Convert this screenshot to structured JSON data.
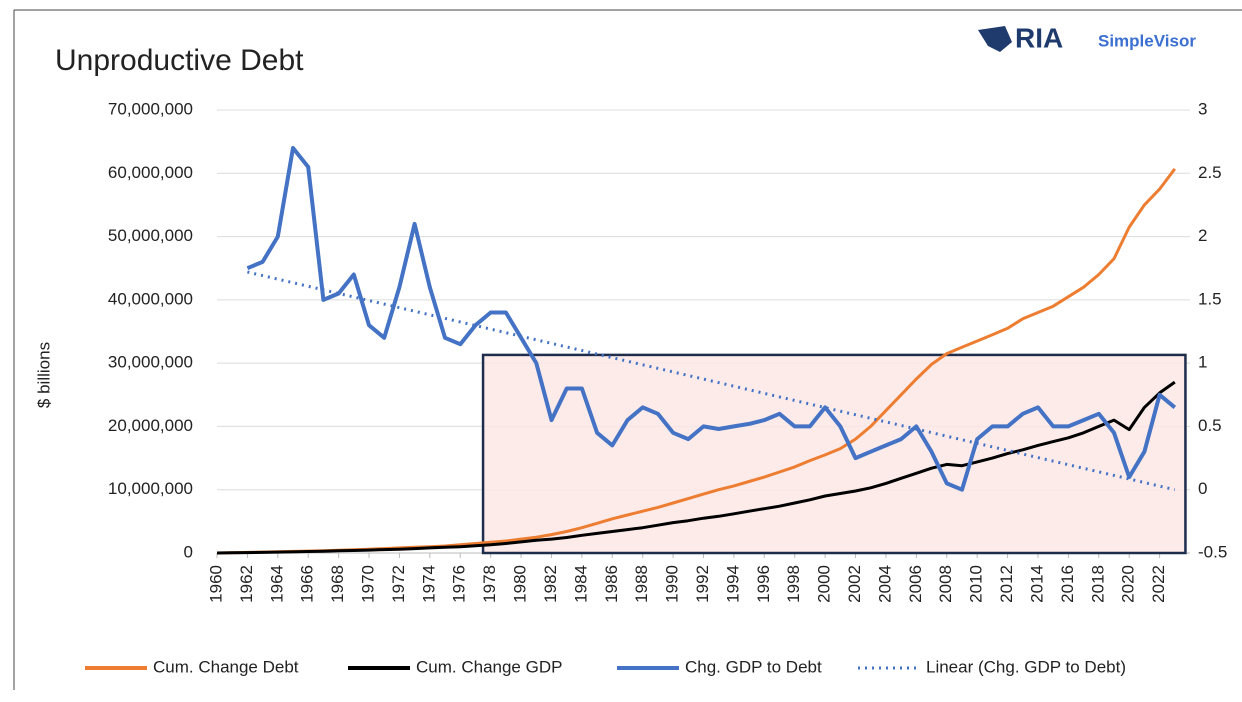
{
  "chart_data": {
    "type": "line",
    "title": "Unproductive Debt",
    "logo": {
      "name": "RIA",
      "sub": "SimpleVisor"
    },
    "y_label": "$ billions",
    "x": [
      1960,
      1961,
      1962,
      1963,
      1964,
      1965,
      1966,
      1967,
      1968,
      1969,
      1970,
      1971,
      1972,
      1973,
      1974,
      1975,
      1976,
      1977,
      1978,
      1979,
      1980,
      1981,
      1982,
      1983,
      1984,
      1985,
      1986,
      1987,
      1988,
      1989,
      1990,
      1991,
      1992,
      1993,
      1994,
      1995,
      1996,
      1997,
      1998,
      1999,
      2000,
      2001,
      2002,
      2003,
      2004,
      2005,
      2006,
      2007,
      2008,
      2009,
      2010,
      2011,
      2012,
      2013,
      2014,
      2015,
      2016,
      2017,
      2018,
      2019,
      2020,
      2021,
      2022,
      2023
    ],
    "xlim": [
      1960,
      2024
    ],
    "xticks": [
      1960,
      1962,
      1964,
      1966,
      1968,
      1970,
      1972,
      1974,
      1976,
      1978,
      1980,
      1982,
      1984,
      1986,
      1988,
      1990,
      1992,
      1994,
      1996,
      1998,
      2000,
      2002,
      2004,
      2006,
      2008,
      2010,
      2012,
      2014,
      2016,
      2018,
      2020,
      2022
    ],
    "ylim": [
      0,
      70000000
    ],
    "yticks": [
      0,
      {
        "value": 10000000,
        "label": "10,000,000"
      },
      {
        "value": 20000000,
        "label": "20,000,000"
      },
      {
        "value": 30000000,
        "label": "30,000,000"
      },
      {
        "value": 40000000,
        "label": "40,000,000"
      },
      {
        "value": 50000000,
        "label": "50,000,000"
      },
      {
        "value": 60000000,
        "label": "60,000,000"
      },
      {
        "value": 70000000,
        "label": "70,000,000"
      }
    ],
    "y2lim": [
      -0.5,
      3
    ],
    "y2ticks": [
      -0.5,
      0,
      0.5,
      1,
      1.5,
      2,
      2.5,
      3
    ],
    "grid": true,
    "legend": "bottom",
    "highlight": {
      "x": [
        1977.5,
        2023.7
      ],
      "y": [
        0,
        31300000
      ],
      "color": "#fde8e6",
      "border": "#1f2d4d"
    },
    "series": [
      {
        "name": "Cum. Change Debt",
        "color": "#ed7d31",
        "values": [
          0,
          50000,
          100000,
          150000,
          200000,
          250000,
          300000,
          350000,
          450000,
          500000,
          600000,
          700000,
          800000,
          900000,
          1000000,
          1100000,
          1300000,
          1500000,
          1700000,
          1900000,
          2200000,
          2500000,
          2900000,
          3400000,
          4000000,
          4700000,
          5400000,
          6000000,
          6600000,
          7200000,
          7900000,
          8600000,
          9300000,
          10000000,
          10600000,
          11300000,
          12000000,
          12800000,
          13600000,
          14600000,
          15500000,
          16500000,
          18000000,
          20000000,
          22500000,
          25000000,
          27500000,
          29800000,
          31500000,
          32500000,
          33500000,
          34500000,
          35500000,
          37000000,
          38000000,
          39000000,
          40500000,
          42000000,
          44000000,
          46500000,
          51500000,
          55000000,
          57500000,
          60700000
        ]
      },
      {
        "name": "Cum. Change GDP",
        "color": "#000000",
        "values": [
          0,
          30000,
          60000,
          100000,
          140000,
          180000,
          230000,
          280000,
          340000,
          400000,
          460000,
          530000,
          600000,
          700000,
          800000,
          900000,
          1000000,
          1150000,
          1300000,
          1500000,
          1750000,
          2000000,
          2200000,
          2450000,
          2800000,
          3100000,
          3400000,
          3700000,
          4000000,
          4400000,
          4800000,
          5100000,
          5500000,
          5800000,
          6200000,
          6600000,
          7000000,
          7400000,
          7900000,
          8400000,
          9000000,
          9400000,
          9800000,
          10300000,
          11000000,
          11800000,
          12600000,
          13400000,
          14000000,
          13800000,
          14400000,
          15000000,
          15700000,
          16300000,
          17000000,
          17600000,
          18200000,
          19000000,
          20000000,
          21000000,
          19500000,
          23000000,
          25300000,
          27000000
        ]
      },
      {
        "name": "Chg. GDP to Debt",
        "color": "#4472c4",
        "axis": "y2",
        "values": [
          null,
          null,
          1.75,
          1.8,
          2.0,
          2.7,
          2.55,
          1.5,
          1.55,
          1.7,
          1.3,
          1.2,
          1.6,
          2.1,
          1.6,
          1.2,
          1.15,
          1.3,
          1.4,
          1.4,
          1.2,
          1.0,
          0.55,
          0.8,
          0.8,
          0.45,
          0.35,
          0.55,
          0.65,
          0.6,
          0.45,
          0.4,
          0.5,
          0.48,
          0.5,
          0.52,
          0.55,
          0.6,
          0.5,
          0.5,
          0.65,
          0.5,
          0.25,
          0.3,
          0.35,
          0.4,
          0.5,
          0.3,
          0.05,
          0.0,
          0.4,
          0.5,
          0.5,
          0.6,
          0.65,
          0.5,
          0.5,
          0.55,
          0.6,
          0.45,
          0.1,
          0.3,
          0.75,
          0.65
        ]
      },
      {
        "name": "Linear (Chg. GDP to Debt)",
        "color": "#4472c4",
        "axis": "y2",
        "dashed": true,
        "x": [
          1962,
          2023
        ],
        "values": [
          1.72,
          0.0
        ]
      }
    ]
  }
}
